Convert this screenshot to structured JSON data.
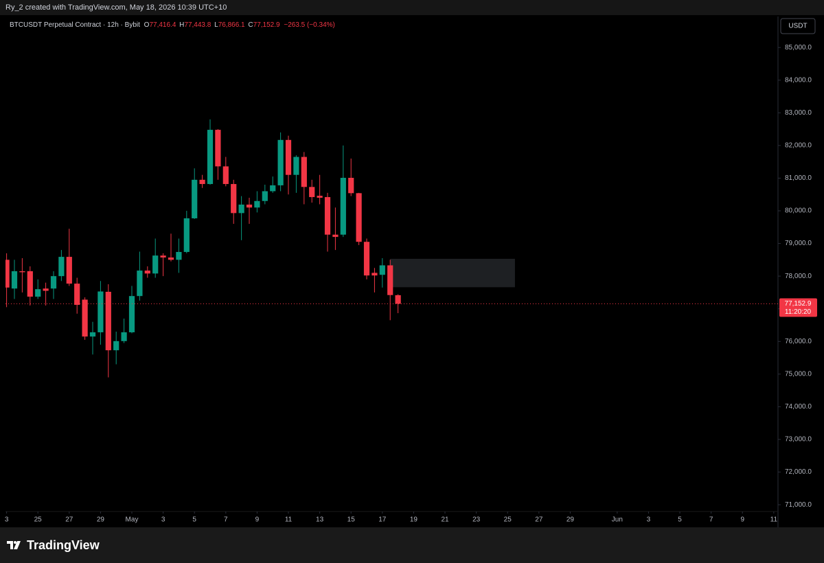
{
  "header": {
    "title": "Ry_2 created with TradingView.com, May 18, 2026 10:39 UTC+10"
  },
  "legend": {
    "symbol": "BTCUSDT Perpetual Contract · 12h · Bybit",
    "ohlc": [
      {
        "key": "O",
        "value": "77,416.4"
      },
      {
        "key": "H",
        "value": "77,443.8"
      },
      {
        "key": "L",
        "value": "76,866.1"
      },
      {
        "key": "C",
        "value": "77,152.9"
      }
    ],
    "change": "−263.5 (−0.34%)"
  },
  "currency_button": "USDT",
  "footer": {
    "logo": "TradingView"
  },
  "chart_data": {
    "type": "candlestick",
    "up_color": "#089981",
    "down_color": "#f23645",
    "x": [
      -8,
      -7.5,
      -7,
      -6.5,
      -6,
      -5.5,
      -5,
      -4.5,
      -4,
      -3.5,
      -3,
      -2.5,
      -2,
      -1.5,
      -1,
      -0.5,
      0,
      0.5,
      1,
      1.5,
      2,
      2.5,
      3,
      3.5,
      4,
      4.5,
      5,
      5.5,
      6,
      6.5,
      7,
      7.5,
      8,
      8.5,
      9,
      9.5,
      10,
      10.5,
      11,
      11.5,
      12,
      12.5,
      13,
      13.5,
      14,
      14.5,
      15,
      15.5,
      16,
      16.5,
      17
    ],
    "open": [
      78500,
      77620,
      78150,
      78150,
      77370,
      77620,
      77620,
      78000,
      78590,
      77770,
      77280,
      76150,
      76280,
      77520,
      75730,
      76010,
      76280,
      77390,
      78170,
      78080,
      78630,
      78570,
      78500,
      78740,
      79770,
      80950,
      80820,
      82480,
      81360,
      80820,
      79930,
      80190,
      80100,
      80300,
      80600,
      80780,
      82170,
      81100,
      81650,
      80730,
      80460,
      80420,
      79270,
      79270,
      81010,
      80540,
      79050,
      78100,
      78040,
      78330,
      77416.4
    ],
    "high": [
      78700,
      78500,
      78550,
      78300,
      77900,
      77800,
      78150,
      78800,
      79450,
      77950,
      77350,
      76600,
      77850,
      77750,
      76300,
      76700,
      77700,
      78750,
      78300,
      79150,
      78700,
      79300,
      79150,
      80000,
      81300,
      81100,
      82800,
      82500,
      81650,
      80950,
      80450,
      80400,
      80600,
      80800,
      81050,
      82400,
      82300,
      81700,
      81800,
      80950,
      81100,
      80550,
      80100,
      82000,
      81600,
      80550,
      79150,
      78250,
      78550,
      78500,
      77443.8
    ],
    "low": [
      77050,
      77300,
      77500,
      77100,
      77300,
      77100,
      77300,
      77850,
      77700,
      76850,
      76050,
      75600,
      75900,
      74900,
      75300,
      75950,
      76250,
      77250,
      77950,
      77950,
      78000,
      78450,
      78100,
      78700,
      79750,
      80700,
      80800,
      80950,
      80750,
      79600,
      79100,
      79600,
      79950,
      80200,
      80550,
      80600,
      80500,
      80550,
      80200,
      80250,
      80200,
      78750,
      78800,
      79200,
      80450,
      78950,
      77900,
      77500,
      77650,
      76650,
      76866.1
    ],
    "close": [
      77650,
      78150,
      78120,
      77370,
      77600,
      77550,
      78000,
      78590,
      77770,
      77120,
      76150,
      76280,
      77530,
      75730,
      76010,
      76280,
      77390,
      78170,
      78080,
      78630,
      78570,
      78500,
      78740,
      79770,
      80950,
      80820,
      82480,
      81360,
      80820,
      79930,
      80190,
      80100,
      80300,
      80600,
      80780,
      82170,
      81100,
      81650,
      80730,
      80420,
      80400,
      79270,
      79200,
      81010,
      80540,
      79050,
      78020,
      78020,
      78330,
      77420,
      77152.9
    ],
    "xlim": [
      -8.07,
      41.27
    ],
    "xticks": [
      {
        "value": -8,
        "label": "3"
      },
      {
        "value": -6,
        "label": "25"
      },
      {
        "value": -4,
        "label": "27"
      },
      {
        "value": -2,
        "label": "29"
      },
      {
        "value": 0,
        "label": "May"
      },
      {
        "value": 2,
        "label": "3"
      },
      {
        "value": 4,
        "label": "5"
      },
      {
        "value": 6,
        "label": "7"
      },
      {
        "value": 8,
        "label": "9"
      },
      {
        "value": 10,
        "label": "11"
      },
      {
        "value": 12,
        "label": "13"
      },
      {
        "value": 14,
        "label": "15"
      },
      {
        "value": 16,
        "label": "17"
      },
      {
        "value": 18,
        "label": "19"
      },
      {
        "value": 20,
        "label": "21"
      },
      {
        "value": 22,
        "label": "23"
      },
      {
        "value": 24,
        "label": "25"
      },
      {
        "value": 26,
        "label": "27"
      },
      {
        "value": 28,
        "label": "29"
      },
      {
        "value": 31,
        "label": "Jun"
      },
      {
        "value": 33,
        "label": "3"
      },
      {
        "value": 35,
        "label": "5"
      },
      {
        "value": 37,
        "label": "7"
      },
      {
        "value": 39,
        "label": "9"
      },
      {
        "value": 41,
        "label": "11"
      }
    ],
    "ylim": [
      70330,
      85950
    ],
    "yticks": [
      {
        "value": 71000,
        "label": "71,000.0"
      },
      {
        "value": 72000,
        "label": "72,000.0"
      },
      {
        "value": 73000,
        "label": "73,000.0"
      },
      {
        "value": 74000,
        "label": "74,000.0"
      },
      {
        "value": 75000,
        "label": "75,000.0"
      },
      {
        "value": 76000,
        "label": "76,000.0"
      },
      {
        "value": 77000,
        "label": "77,000.0"
      },
      {
        "value": 78000,
        "label": "78,000.0"
      },
      {
        "value": 79000,
        "label": "79,000.0"
      },
      {
        "value": 80000,
        "label": "80,000.0"
      },
      {
        "value": 81000,
        "label": "81,000.0"
      },
      {
        "value": 82000,
        "label": "82,000.0"
      },
      {
        "value": 83000,
        "label": "83,000.0"
      },
      {
        "value": 84000,
        "label": "84,000.0"
      },
      {
        "value": 85000,
        "label": "85,000.0"
      }
    ],
    "grid": false,
    "zone": {
      "x": [
        16.5,
        24.47
      ],
      "y": [
        77660,
        78530
      ],
      "color": "#1e2023"
    },
    "last_price": {
      "value": 77152.9,
      "label": "77,152.9",
      "countdown": "11:20:20",
      "color": "#f23645"
    }
  }
}
